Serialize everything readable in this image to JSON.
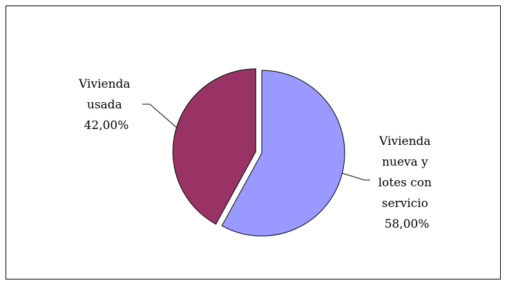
{
  "chart_data": {
    "type": "pie",
    "title": "",
    "slices": [
      {
        "name": "Vivienda nueva y lotes con servicio",
        "value": 58.0,
        "label_lines": [
          "Vivienda",
          "nueva y",
          "lotes con",
          "servicio",
          "58,00%"
        ],
        "color": "#9999ff",
        "exploded": false
      },
      {
        "name": "Vivienda usada",
        "value": 42.0,
        "label_lines": [
          "Vivienda",
          "usada",
          "42,00%"
        ],
        "color": "#993366",
        "exploded": true
      }
    ],
    "legend": "none",
    "data_labels": "outside with leader lines"
  }
}
